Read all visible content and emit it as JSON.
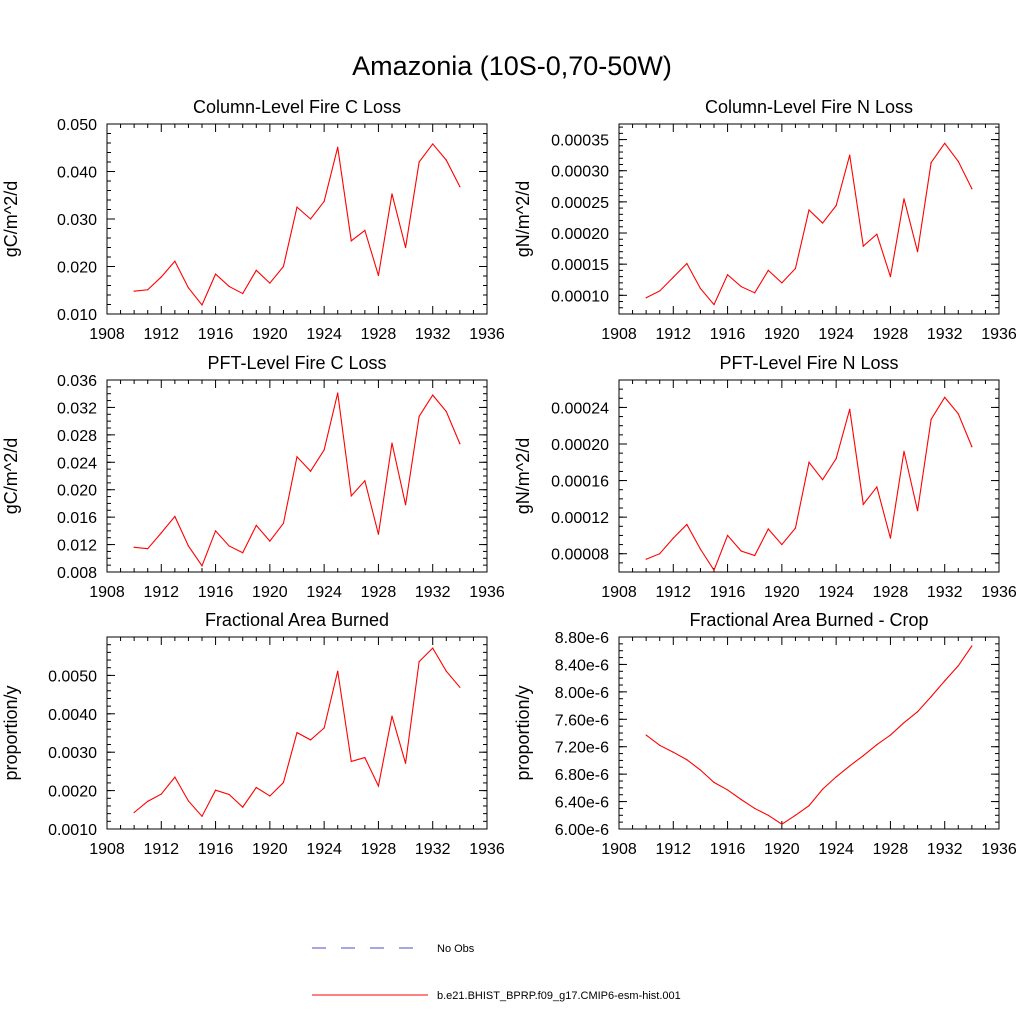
{
  "title": "Amazonia (10S-0,70-50W)",
  "colors": {
    "model_line": "#ff0000",
    "obs_line": "#4d4dcc",
    "axis": "#000000"
  },
  "legend": [
    {
      "label": "No Obs",
      "style": "dashed",
      "color": "#4d4dcc"
    },
    {
      "label": "b.e21.BHIST_BPRP.f09_g17.CMIP6-esm-hist.001",
      "style": "solid",
      "color": "#ff0000"
    }
  ],
  "chart_data": [
    {
      "type": "line",
      "title": "Column-Level Fire C Loss",
      "ylabel": "gC/m^2/d",
      "xlabel": "",
      "xlim": [
        1908,
        1936
      ],
      "xticks": [
        "1908",
        "1912",
        "1916",
        "1920",
        "1924",
        "1928",
        "1932",
        "1936"
      ],
      "ylim": [
        0.01,
        0.05
      ],
      "yticks": [
        "0.010",
        "0.020",
        "0.030",
        "0.040",
        "0.050"
      ],
      "yminor_step": 0.002,
      "x": [
        1910,
        1911,
        1912,
        1913,
        1914,
        1915,
        1916,
        1917,
        1918,
        1919,
        1920,
        1921,
        1922,
        1923,
        1924,
        1925,
        1926,
        1927,
        1928,
        1929,
        1930,
        1931,
        1932,
        1933,
        1934
      ],
      "series": [
        {
          "name": "b.e21.BHIST_BPRP.f09_g17.CMIP6-esm-hist.001",
          "values": [
            0.0148,
            0.0151,
            0.0178,
            0.0211,
            0.0155,
            0.0119,
            0.0184,
            0.0158,
            0.0143,
            0.0192,
            0.0165,
            0.02,
            0.0325,
            0.03,
            0.0337,
            0.0451,
            0.0254,
            0.0276,
            0.0181,
            0.0353,
            0.024,
            0.042,
            0.0458,
            0.0424,
            0.0368
          ]
        }
      ]
    },
    {
      "type": "line",
      "title": "Column-Level Fire N Loss",
      "ylabel": "gN/m^2/d",
      "xlabel": "",
      "xlim": [
        1908,
        1936
      ],
      "xticks": [
        "1908",
        "1912",
        "1916",
        "1920",
        "1924",
        "1928",
        "1932",
        "1936"
      ],
      "ylim": [
        7e-05,
        0.000375
      ],
      "yticks": [
        "0.00010",
        "0.00015",
        "0.00020",
        "0.00025",
        "0.00030",
        "0.00035"
      ],
      "yminor_step": 1e-05,
      "x": [
        1910,
        1911,
        1912,
        1913,
        1914,
        1915,
        1916,
        1917,
        1918,
        1919,
        1920,
        1921,
        1922,
        1923,
        1924,
        1925,
        1926,
        1927,
        1928,
        1929,
        1930,
        1931,
        1932,
        1933,
        1934
      ],
      "series": [
        {
          "name": "b.e21.BHIST_BPRP.f09_g17.CMIP6-esm-hist.001",
          "values": [
            9.6e-05,
            0.000107,
            0.000129,
            0.000151,
            0.000111,
            8.5e-05,
            0.000133,
            0.000114,
            0.000104,
            0.00014,
            0.00012,
            0.000143,
            0.000237,
            0.000216,
            0.000244,
            0.000325,
            0.000179,
            0.000198,
            0.00013,
            0.000255,
            0.00017,
            0.000313,
            0.000344,
            0.000315,
            0.000271
          ]
        }
      ]
    },
    {
      "type": "line",
      "title": "PFT-Level Fire C Loss",
      "ylabel": "gC/m^2/d",
      "xlabel": "",
      "xlim": [
        1908,
        1936
      ],
      "xticks": [
        "1908",
        "1912",
        "1916",
        "1920",
        "1924",
        "1928",
        "1932",
        "1936"
      ],
      "ylim": [
        0.008,
        0.036
      ],
      "yticks": [
        "0.008",
        "0.012",
        "0.016",
        "0.020",
        "0.024",
        "0.028",
        "0.032",
        "0.036"
      ],
      "yminor_step": 0.001,
      "x": [
        1910,
        1911,
        1912,
        1913,
        1914,
        1915,
        1916,
        1917,
        1918,
        1919,
        1920,
        1921,
        1922,
        1923,
        1924,
        1925,
        1926,
        1927,
        1928,
        1929,
        1930,
        1931,
        1932,
        1933,
        1934
      ],
      "series": [
        {
          "name": "b.e21.BHIST_BPRP.f09_g17.CMIP6-esm-hist.001",
          "values": [
            0.0116,
            0.0114,
            0.0137,
            0.0161,
            0.0118,
            0.0089,
            0.014,
            0.0118,
            0.0108,
            0.0148,
            0.0125,
            0.0151,
            0.0248,
            0.0227,
            0.0258,
            0.0341,
            0.0191,
            0.0213,
            0.0135,
            0.0268,
            0.0178,
            0.0307,
            0.0338,
            0.0314,
            0.0267
          ]
        }
      ]
    },
    {
      "type": "line",
      "title": "PFT-Level Fire N Loss",
      "ylabel": "gN/m^2/d",
      "xlabel": "",
      "xlim": [
        1908,
        1936
      ],
      "xticks": [
        "1908",
        "1912",
        "1916",
        "1920",
        "1924",
        "1928",
        "1932",
        "1936"
      ],
      "ylim": [
        6e-05,
        0.00027
      ],
      "yticks": [
        "0.00008",
        "0.00012",
        "0.00016",
        "0.00020",
        "0.00024"
      ],
      "yminor_step": 1e-05,
      "x": [
        1910,
        1911,
        1912,
        1913,
        1914,
        1915,
        1916,
        1917,
        1918,
        1919,
        1920,
        1921,
        1922,
        1923,
        1924,
        1925,
        1926,
        1927,
        1928,
        1929,
        1930,
        1931,
        1932,
        1933,
        1934
      ],
      "series": [
        {
          "name": "b.e21.BHIST_BPRP.f09_g17.CMIP6-esm-hist.001",
          "values": [
            7.4e-05,
            8e-05,
            9.7e-05,
            0.000112,
            8.5e-05,
            6.2e-05,
            0.0001,
            8.3e-05,
            7.8e-05,
            0.000107,
            9e-05,
            0.000108,
            0.00018,
            0.000161,
            0.000184,
            0.000238,
            0.000134,
            0.000153,
            9.7e-05,
            0.000192,
            0.000127,
            0.000227,
            0.000251,
            0.000233,
            0.000197
          ]
        }
      ]
    },
    {
      "type": "line",
      "title": "Fractional Area Burned",
      "ylabel": "proportion/y",
      "xlabel": "",
      "xlim": [
        1908,
        1936
      ],
      "xticks": [
        "1908",
        "1912",
        "1916",
        "1920",
        "1924",
        "1928",
        "1932",
        "1936"
      ],
      "ylim": [
        0.001,
        0.006
      ],
      "yticks": [
        "0.0010",
        "0.0020",
        "0.0030",
        "0.0040",
        "0.0050"
      ],
      "yminor_step": 0.0002,
      "x": [
        1910,
        1911,
        1912,
        1913,
        1914,
        1915,
        1916,
        1917,
        1918,
        1919,
        1920,
        1921,
        1922,
        1923,
        1924,
        1925,
        1926,
        1927,
        1928,
        1929,
        1930,
        1931,
        1932,
        1933,
        1934
      ],
      "series": [
        {
          "name": "b.e21.BHIST_BPRP.f09_g17.CMIP6-esm-hist.001",
          "values": [
            0.00143,
            0.00172,
            0.00191,
            0.00235,
            0.00173,
            0.00133,
            0.00201,
            0.0019,
            0.00157,
            0.00208,
            0.00186,
            0.00221,
            0.00351,
            0.00332,
            0.00363,
            0.00511,
            0.00276,
            0.00286,
            0.00212,
            0.00394,
            0.00271,
            0.00536,
            0.00571,
            0.00511,
            0.00469
          ]
        }
      ]
    },
    {
      "type": "line",
      "title": "Fractional Area Burned - Crop",
      "ylabel": "proportion/y",
      "xlabel": "",
      "xlim": [
        1908,
        1936
      ],
      "xticks": [
        "1908",
        "1912",
        "1916",
        "1920",
        "1924",
        "1928",
        "1932",
        "1936"
      ],
      "ylim": [
        6e-06,
        8.8e-06
      ],
      "yticks": [
        "6.00e-6",
        "6.40e-6",
        "6.80e-6",
        "7.20e-6",
        "7.60e-6",
        "8.00e-6",
        "8.40e-6",
        "8.80e-6"
      ],
      "yminor_step": 1e-07,
      "x": [
        1910,
        1911,
        1912,
        1913,
        1914,
        1915,
        1916,
        1917,
        1918,
        1919,
        1920,
        1921,
        1922,
        1923,
        1924,
        1925,
        1926,
        1927,
        1928,
        1929,
        1930,
        1931,
        1932,
        1933,
        1934
      ],
      "series": [
        {
          "name": "b.e21.BHIST_BPRP.f09_g17.CMIP6-esm-hist.001",
          "values": [
            7.37e-06,
            7.22e-06,
            7.12e-06,
            7.01e-06,
            6.86e-06,
            6.68e-06,
            6.57e-06,
            6.43e-06,
            6.3e-06,
            6.2e-06,
            6.07e-06,
            6.2e-06,
            6.34e-06,
            6.58e-06,
            6.76e-06,
            6.92e-06,
            7.07e-06,
            7.23e-06,
            7.37e-06,
            7.55e-06,
            7.71e-06,
            7.93e-06,
            8.16e-06,
            8.38e-06,
            8.67e-06
          ]
        }
      ]
    }
  ]
}
